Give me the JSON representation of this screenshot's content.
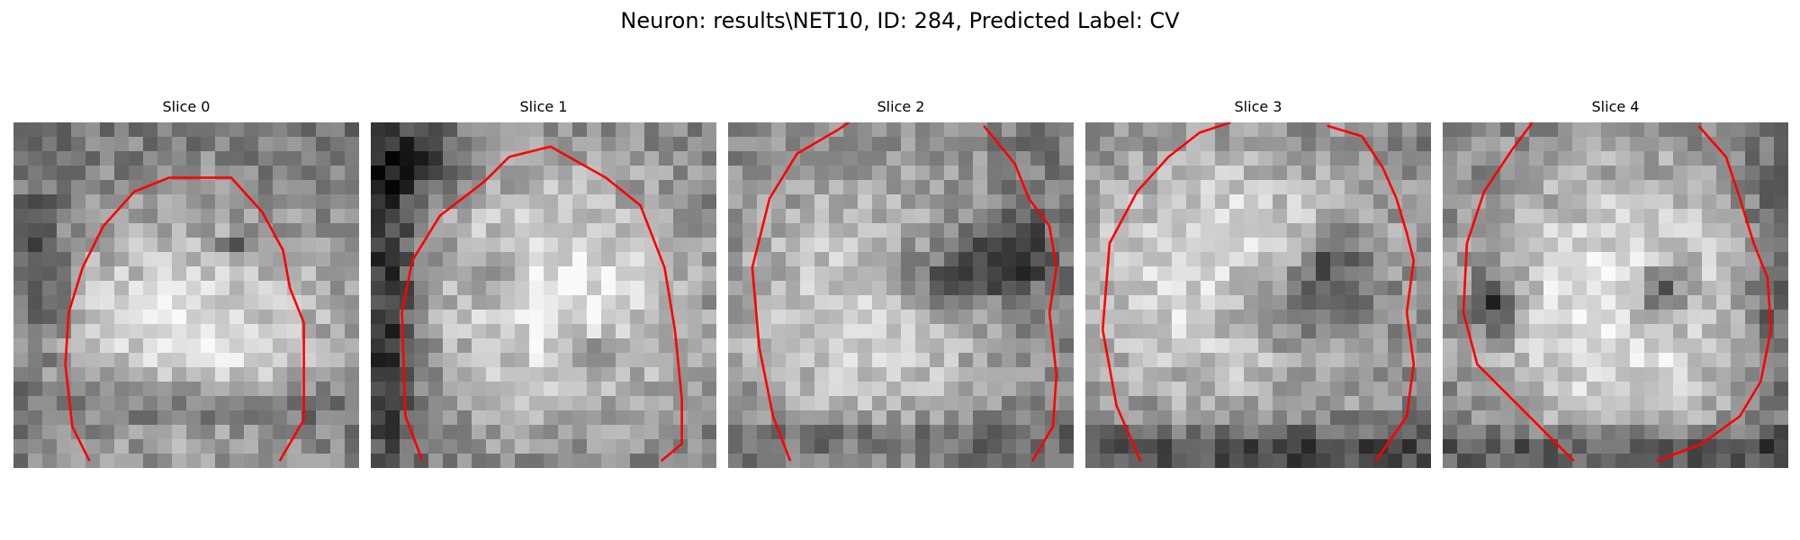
{
  "figure": {
    "title": "Neuron: results\\NET10, ID: 284, Predicted Label: CV"
  },
  "panels": [
    {
      "title": "Slice 0"
    },
    {
      "title": "Slice 1"
    },
    {
      "title": "Slice 2"
    },
    {
      "title": "Slice 3"
    },
    {
      "title": "Slice 4"
    }
  ],
  "colors": {
    "contour": "#ff0000"
  }
}
